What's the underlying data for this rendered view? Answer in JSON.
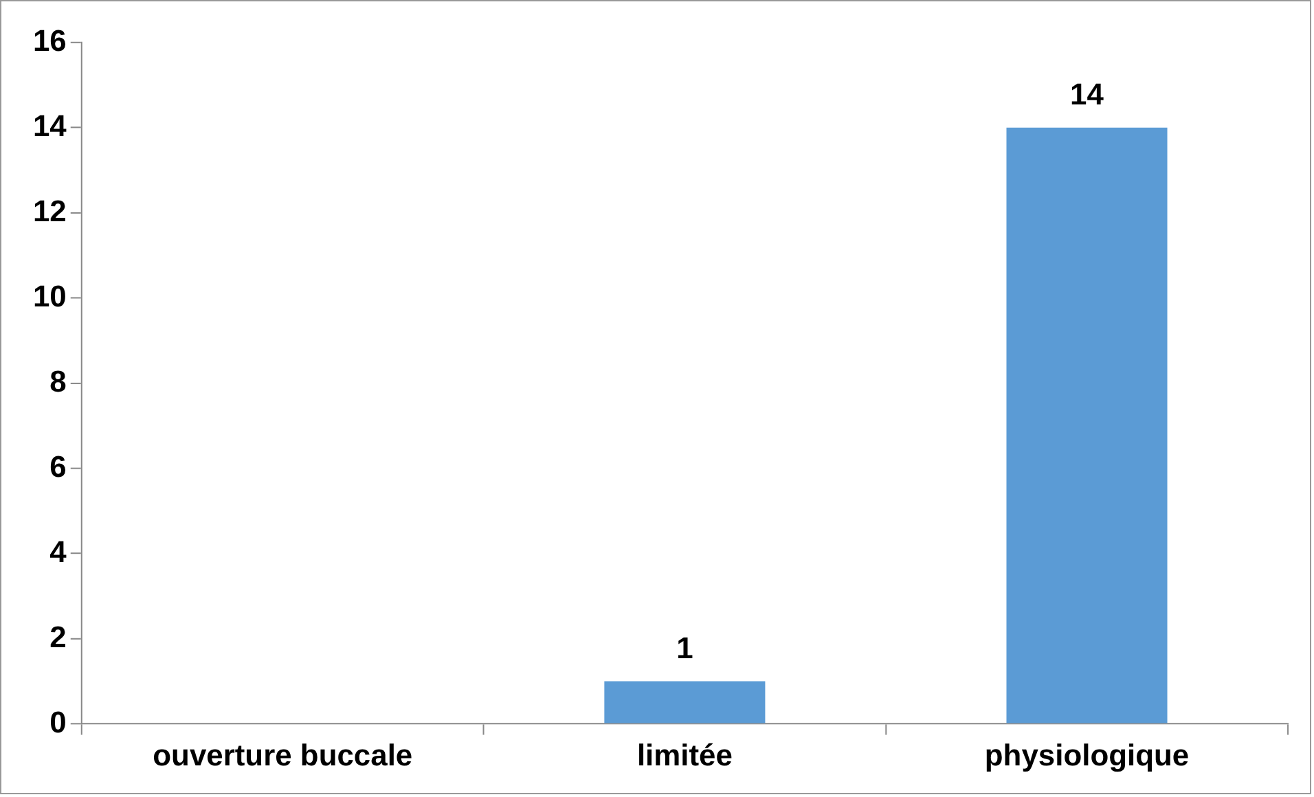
{
  "chart_data": {
    "type": "bar",
    "categories": [
      "ouverture buccale",
      "limitée",
      "physiologique"
    ],
    "values": [
      null,
      1,
      14
    ],
    "color": "#5b9bd5",
    "ylim": [
      0,
      16
    ],
    "yticks": [
      0,
      2,
      4,
      6,
      8,
      10,
      12,
      14,
      16
    ],
    "grid": false,
    "legend": false,
    "data_labels": true
  }
}
